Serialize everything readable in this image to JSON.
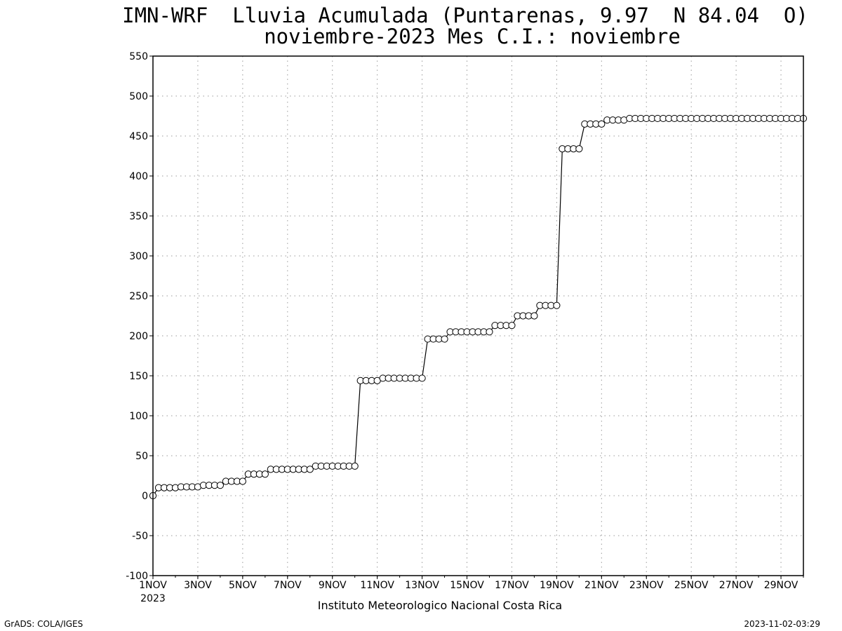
{
  "title_line1": "IMN-WRF  Lluvia Acumulada (Puntarenas, 9.97  N 84.04  O)",
  "title_line2": "noviembre-2023 Mes C.I.: noviembre",
  "institution": "Instituto Meteorologico Nacional Costa Rica",
  "footer_left": "GrADS: COLA/IGES",
  "footer_right": "2023-11-02-03:29",
  "chart_data": {
    "type": "line",
    "title": "IMN-WRF  Lluvia Acumulada (Puntarenas, 9.97  N 84.04  O)",
    "subtitle": "noviembre-2023 Mes C.I.: noviembre",
    "xlabel": "",
    "ylabel": "",
    "x_unit": "day of November 2023",
    "xlim": [
      1,
      30
    ],
    "ylim": [
      -100,
      550
    ],
    "y_ticks": [
      -100,
      -50,
      0,
      50,
      100,
      150,
      200,
      250,
      300,
      350,
      400,
      450,
      500,
      550
    ],
    "x_ticks": [
      {
        "day": 1,
        "label": "1NOV"
      },
      {
        "day": 3,
        "label": "3NOV"
      },
      {
        "day": 5,
        "label": "5NOV"
      },
      {
        "day": 7,
        "label": "7NOV"
      },
      {
        "day": 9,
        "label": "9NOV"
      },
      {
        "day": 11,
        "label": "11NOV"
      },
      {
        "day": 13,
        "label": "13NOV"
      },
      {
        "day": 15,
        "label": "15NOV"
      },
      {
        "day": 17,
        "label": "17NOV"
      },
      {
        "day": 19,
        "label": "19NOV"
      },
      {
        "day": 21,
        "label": "21NOV"
      },
      {
        "day": 23,
        "label": "23NOV"
      },
      {
        "day": 25,
        "label": "25NOV"
      },
      {
        "day": 27,
        "label": "27NOV"
      },
      {
        "day": 29,
        "label": "29NOV"
      }
    ],
    "x_year_label": "2023",
    "grid": true,
    "marker": "open-circle",
    "series": [
      {
        "x": [
          1,
          1.25,
          1.5,
          1.75,
          2,
          2.25,
          2.5,
          2.75,
          3,
          3.25,
          3.5,
          3.75,
          4,
          4.25,
          4.5,
          4.75,
          5,
          5.25,
          5.5,
          5.75,
          6,
          6.25,
          6.5,
          6.75,
          7,
          7.25,
          7.5,
          7.75,
          8,
          8.25,
          8.5,
          8.75,
          9,
          9.25,
          9.5,
          9.75,
          10,
          10.25,
          10.5,
          10.75,
          11,
          11.25,
          11.5,
          11.75,
          12,
          12.25,
          12.5,
          12.75,
          13,
          13.25,
          13.5,
          13.75,
          14,
          14.25,
          14.5,
          14.75,
          15,
          15.25,
          15.5,
          15.75,
          16,
          16.25,
          16.5,
          16.75,
          17,
          17.25,
          17.5,
          17.75,
          18,
          18.25,
          18.5,
          18.75,
          19,
          19.25,
          19.5,
          19.75,
          20,
          20.25,
          20.5,
          20.75,
          21,
          21.25,
          21.5,
          21.75,
          22,
          22.25,
          22.5,
          22.75,
          23,
          23.25,
          23.5,
          23.75,
          24,
          24.25,
          24.5,
          24.75,
          25,
          25.25,
          25.5,
          25.75,
          26,
          26.25,
          26.5,
          26.75,
          27,
          27.25,
          27.5,
          27.75,
          28,
          28.25,
          28.5,
          28.75,
          29,
          29.25,
          29.5,
          29.75,
          30
        ],
        "values": [
          0,
          10,
          10,
          10,
          10,
          11,
          11,
          11,
          11,
          13,
          13,
          13,
          13,
          18,
          18,
          18,
          18,
          27,
          27,
          27,
          27,
          33,
          33,
          33,
          33,
          33,
          33,
          33,
          33,
          37,
          37,
          37,
          37,
          37,
          37,
          37,
          37,
          144,
          144,
          144,
          144,
          147,
          147,
          147,
          147,
          147,
          147,
          147,
          147,
          196,
          196,
          196,
          196,
          205,
          205,
          205,
          205,
          205,
          205,
          205,
          205,
          213,
          213,
          213,
          213,
          225,
          225,
          225,
          225,
          238,
          238,
          238,
          238,
          434,
          434,
          434,
          434,
          465,
          465,
          465,
          465,
          470,
          470,
          470,
          470,
          472,
          472,
          472,
          472,
          472,
          472,
          472,
          472,
          472,
          472,
          472,
          472,
          472,
          472,
          472,
          472,
          472,
          472,
          472,
          472,
          472,
          472,
          472,
          472,
          472,
          472,
          472,
          472,
          472,
          472,
          472,
          472
        ]
      }
    ]
  }
}
